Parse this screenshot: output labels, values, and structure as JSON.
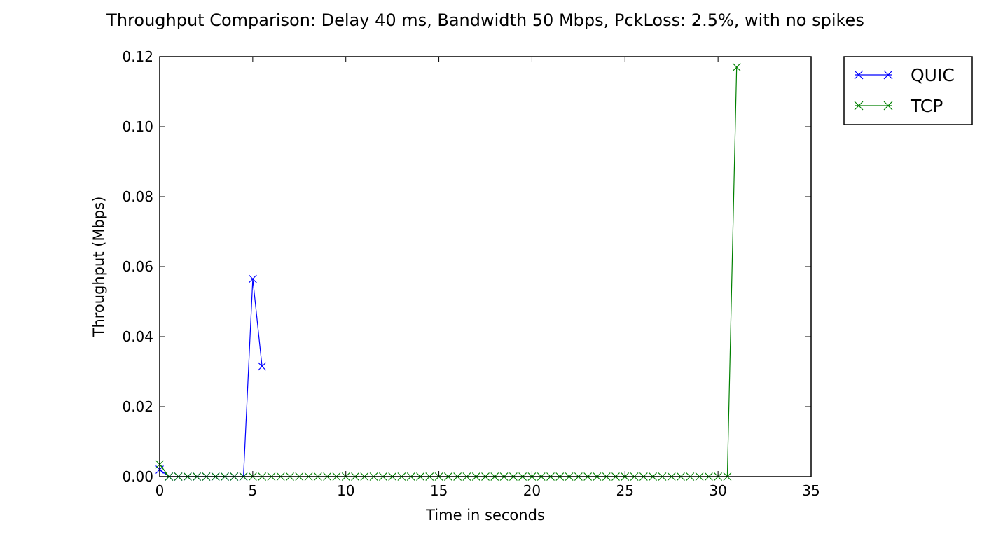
{
  "chart_data": {
    "type": "line",
    "title": "Throughput Comparison: Delay 40 ms, Bandwidth 50 Mbps, PckLoss: 2.5%, with no spikes",
    "xlabel": "Time in seconds",
    "ylabel": "Throughput (Mbps)",
    "xlim": [
      0,
      35
    ],
    "ylim": [
      0,
      0.12
    ],
    "x_ticks": [
      0,
      5,
      10,
      15,
      20,
      25,
      30,
      35
    ],
    "x_tick_labels": [
      "0",
      "5",
      "10",
      "15",
      "20",
      "25",
      "30",
      "35"
    ],
    "y_ticks": [
      0,
      0.02,
      0.04,
      0.06,
      0.08,
      0.1,
      0.12
    ],
    "y_tick_labels": [
      "0.00",
      "0.02",
      "0.04",
      "0.06",
      "0.08",
      "0.10",
      "0.12"
    ],
    "grid": false,
    "legend_position": "outside top-right",
    "series": [
      {
        "name": "QUIC",
        "color": "#0000ff",
        "marker": "x",
        "x": [
          0,
          0.5,
          1,
          1.5,
          2,
          2.5,
          3,
          3.5,
          4,
          4.5,
          5,
          5.5
        ],
        "y": [
          0.002,
          0,
          0,
          0,
          0,
          0,
          0,
          0,
          0,
          0,
          0.0565,
          0.0315
        ]
      },
      {
        "name": "TCP",
        "color": "#008000",
        "marker": "x",
        "x": [
          0,
          0.5,
          1,
          1.5,
          2,
          2.5,
          3,
          3.5,
          4,
          4.5,
          5,
          5.5,
          6,
          6.5,
          7,
          7.5,
          8,
          8.5,
          9,
          9.5,
          10,
          10.5,
          11,
          11.5,
          12,
          12.5,
          13,
          13.5,
          14,
          14.5,
          15,
          15.5,
          16,
          16.5,
          17,
          17.5,
          18,
          18.5,
          19,
          19.5,
          20,
          20.5,
          21,
          21.5,
          22,
          22.5,
          23,
          23.5,
          24,
          24.5,
          25,
          25.5,
          26,
          26.5,
          27,
          27.5,
          28,
          28.5,
          29,
          29.5,
          30,
          30.5,
          31
        ],
        "y": [
          0.0035,
          0,
          0,
          0,
          0,
          0,
          0,
          0,
          0,
          0,
          0,
          0,
          0,
          0,
          0,
          0,
          0,
          0,
          0,
          0,
          0,
          0,
          0,
          0,
          0,
          0,
          0,
          0,
          0,
          0,
          0,
          0,
          0,
          0,
          0,
          0,
          0,
          0,
          0,
          0,
          0,
          0,
          0,
          0,
          0,
          0,
          0,
          0,
          0,
          0,
          0,
          0,
          0,
          0,
          0,
          0,
          0,
          0,
          0,
          0,
          0,
          0,
          0.117
        ]
      }
    ]
  }
}
